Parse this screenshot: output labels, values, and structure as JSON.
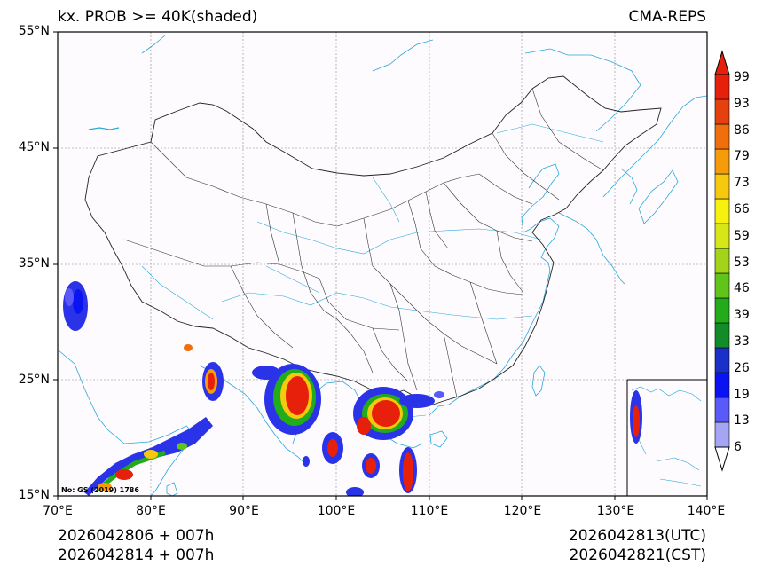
{
  "header": {
    "left_title": "kx. PROB >= 40K(shaded)",
    "right_title": "CMA-REPS"
  },
  "axes": {
    "lat_labels": [
      "55°N",
      "45°N",
      "35°N",
      "25°N",
      "15°N"
    ],
    "lon_labels": [
      "70°E",
      "80°E",
      "90°E",
      "100°E",
      "110°E",
      "120°E",
      "130°E",
      "140°E"
    ]
  },
  "map_note": "No: GS (2019) 1786",
  "colorbar": {
    "levels": [
      "6",
      "13",
      "19",
      "26",
      "33",
      "39",
      "46",
      "53",
      "59",
      "66",
      "73",
      "79",
      "86",
      "93",
      "99"
    ],
    "colors": [
      "#a5a5f5",
      "#5a5af8",
      "#0a14f2",
      "#1a30c8",
      "#128c28",
      "#22ac1c",
      "#60c41a",
      "#a4d41a",
      "#d6e616",
      "#f6f20e",
      "#f6c80e",
      "#f69c0a",
      "#f06e0c",
      "#e6400e",
      "#e6200a"
    ]
  },
  "footer": {
    "init_line1": "2026042806  +  007h",
    "init_line2": "2026042814  +  007h",
    "valid_utc": "2026042813(UTC)",
    "valid_cst": "2026042821(CST)"
  }
}
